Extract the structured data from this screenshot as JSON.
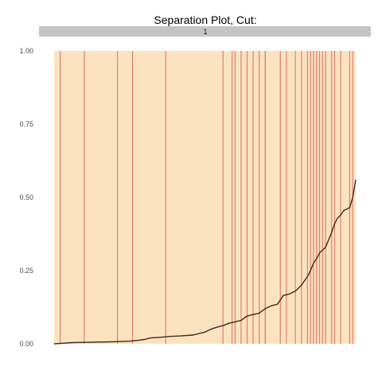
{
  "chart_data": {
    "type": "line",
    "title": "Separation Plot, Cut:",
    "facet_label": "1",
    "xlabel": "",
    "ylabel": "",
    "ylim": [
      0,
      1
    ],
    "yticks": [
      "0.00",
      "0.25",
      "0.50",
      "0.75",
      "1.00"
    ],
    "ytick_values": [
      0,
      0.25,
      0.5,
      0.75,
      1
    ],
    "x_range": [
      0,
      1
    ],
    "grid": false,
    "background_color": "#fbe3bf",
    "event_line_color": "#e07f70",
    "curve_color": "#3a2a22",
    "strip_color": "#c4c4c4",
    "events_x": [
      0.02,
      0.1,
      0.21,
      0.26,
      0.37,
      0.56,
      0.59,
      0.6,
      0.62,
      0.64,
      0.66,
      0.68,
      0.7,
      0.7,
      0.75,
      0.77,
      0.8,
      0.82,
      0.84,
      0.85,
      0.86,
      0.87,
      0.88,
      0.89,
      0.9,
      0.92,
      0.93,
      0.95,
      0.98,
      0.99
    ],
    "curve": {
      "x": [
        0.0,
        0.03,
        0.06,
        0.1,
        0.15,
        0.2,
        0.25,
        0.28,
        0.3,
        0.32,
        0.35,
        0.38,
        0.42,
        0.46,
        0.5,
        0.52,
        0.55,
        0.56,
        0.58,
        0.6,
        0.62,
        0.64,
        0.66,
        0.67,
        0.68,
        0.7,
        0.72,
        0.74,
        0.75,
        0.76,
        0.78,
        0.8,
        0.82,
        0.83,
        0.84,
        0.85,
        0.86,
        0.87,
        0.88,
        0.89,
        0.9,
        0.91,
        0.92,
        0.93,
        0.94,
        0.95,
        0.96,
        0.97,
        0.98,
        0.99,
        1.0
      ],
      "y": [
        0.0,
        0.002,
        0.004,
        0.005,
        0.006,
        0.007,
        0.009,
        0.012,
        0.015,
        0.02,
        0.022,
        0.025,
        0.027,
        0.03,
        0.04,
        0.05,
        0.06,
        0.062,
        0.07,
        0.075,
        0.08,
        0.095,
        0.1,
        0.102,
        0.105,
        0.12,
        0.13,
        0.135,
        0.15,
        0.165,
        0.17,
        0.18,
        0.2,
        0.215,
        0.23,
        0.25,
        0.275,
        0.29,
        0.31,
        0.32,
        0.33,
        0.355,
        0.38,
        0.41,
        0.43,
        0.44,
        0.455,
        0.46,
        0.465,
        0.5,
        0.56
      ]
    }
  }
}
